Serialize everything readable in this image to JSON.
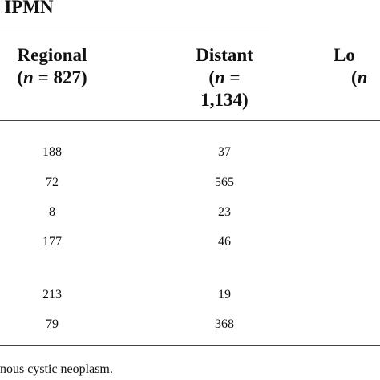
{
  "table": {
    "group_title": "IPMN",
    "headers": [
      {
        "label": "Regional",
        "open": "(",
        "n": "n",
        "rest": " = 827)"
      },
      {
        "label": "Distant",
        "open": "(",
        "n": "n",
        "rest": " =",
        "rest2": "1,134)"
      },
      {
        "label": "Lo",
        "open": "(",
        "n": "n"
      }
    ],
    "rows": [
      [
        "188",
        "37"
      ],
      [
        "72",
        "565"
      ],
      [
        "8",
        "23"
      ],
      [
        "177",
        "46"
      ],
      [
        "213",
        "19"
      ],
      [
        "79",
        "368"
      ]
    ],
    "footnote": "nous cystic neoplasm."
  }
}
